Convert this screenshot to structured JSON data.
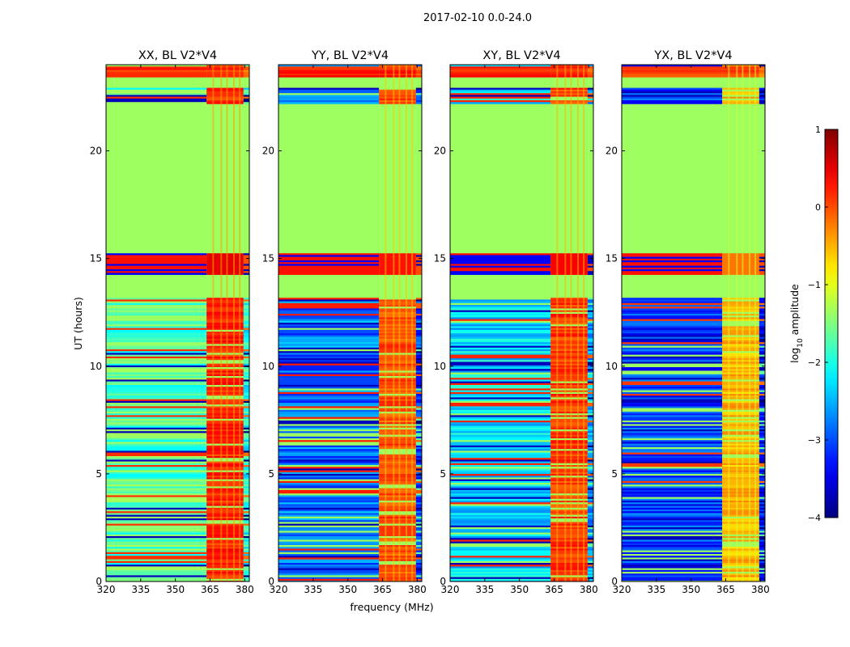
{
  "chart_data": {
    "type": "heatmap",
    "suptitle": "2017-02-10 0.0-24.0",
    "xlabel": "frequency (MHz)",
    "ylabel": "UT (hours)",
    "xlim": [
      320,
      382
    ],
    "ylim": [
      0,
      24
    ],
    "xticks": [
      "320",
      "335",
      "350",
      "365",
      "380"
    ],
    "yticks": [
      "0",
      "5",
      "10",
      "15",
      "20"
    ],
    "colorbar": {
      "label": "log10 amplitude",
      "label_base": "log",
      "label_sub": "10",
      "label_rest": " amplitude",
      "range": [
        -4,
        1
      ],
      "ticks": [
        "−4",
        "−3",
        "−2",
        "−1",
        "0",
        "1"
      ],
      "colormap": "jet"
    },
    "panels": [
      {
        "title": "XX, BL V2*V4",
        "low_level": -1.7,
        "mid_level": 0.2,
        "high_level": 0.15
      },
      {
        "title": "YY, BL V2*V4",
        "low_level": -2.8,
        "mid_level": 0.0,
        "high_level": 0.25
      },
      {
        "title": "XY, BL V2*V4",
        "low_level": -2.3,
        "mid_level": 0.1,
        "high_level": 0.2
      },
      {
        "title": "YX, BL V2*V4",
        "low_level": -3.1,
        "mid_level": -0.5,
        "high_level": 0.1
      }
    ],
    "flagged_value": -1.35,
    "time_blocks_hours": [
      {
        "start": 0.0,
        "end": 13.2,
        "state": "data"
      },
      {
        "start": 13.2,
        "end": 14.3,
        "state": "flagged"
      },
      {
        "start": 14.3,
        "end": 15.3,
        "state": "rfi"
      },
      {
        "start": 15.3,
        "end": 22.2,
        "state": "flagged"
      },
      {
        "start": 22.2,
        "end": 23.0,
        "state": "data"
      },
      {
        "start": 23.0,
        "end": 23.5,
        "state": "flagged"
      },
      {
        "start": 23.5,
        "end": 24.0,
        "state": "high"
      }
    ],
    "band_edge_mhz": 363.5,
    "band_end_mhz": 379.5
  }
}
